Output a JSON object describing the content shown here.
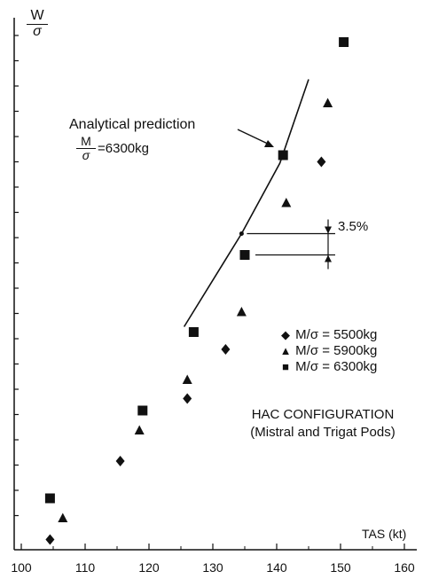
{
  "chart_data": {
    "type": "scatter",
    "title": "",
    "ylabel_numerator": "W",
    "ylabel_denominator": "σ",
    "xlabel": "TAS (kt)",
    "xlim": [
      100,
      160
    ],
    "x_ticks": [
      100,
      110,
      120,
      130,
      140,
      150,
      160
    ],
    "y_tick_labels": "none",
    "grid": false,
    "legend_position": "center-right",
    "series": [
      {
        "name": "M/σ = 5500kg",
        "marker": "diamond",
        "symbol": "◆",
        "points": [
          [
            104.5,
            0.05
          ],
          [
            115.5,
            3.0
          ],
          [
            126,
            5.35
          ],
          [
            132,
            7.2
          ],
          [
            147,
            14.25
          ]
        ]
      },
      {
        "name": "M/σ = 5900kg",
        "marker": "triangle",
        "symbol": "▲",
        "points": [
          [
            106.5,
            0.85
          ],
          [
            118.5,
            4.15
          ],
          [
            126,
            6.05
          ],
          [
            134.5,
            8.6
          ],
          [
            141.5,
            12.7
          ],
          [
            148,
            16.45
          ]
        ]
      },
      {
        "name": "M/σ = 6300kg",
        "marker": "square",
        "symbol": "■",
        "points": [
          [
            104.5,
            1.6
          ],
          [
            119,
            4.9
          ],
          [
            127,
            7.85
          ],
          [
            135,
            10.75
          ],
          [
            141,
            14.5
          ],
          [
            150.5,
            18.75
          ]
        ]
      }
    ],
    "analytical_prediction": {
      "label": "Analytical prediction",
      "m_num": "M",
      "m_den": "σ",
      "value": "=6300kg",
      "line": [
        [
          125.5,
          8.05
        ],
        [
          134.5,
          11.55
        ],
        [
          140.5,
          14.2
        ],
        [
          145,
          17.35
        ]
      ]
    },
    "gap_annotation": {
      "label": "3.5%",
      "from_y": 11.55,
      "to_y": 10.75
    },
    "configuration": {
      "line1": "HAC CONFIGURATION",
      "line2": "(Mistral and Trigat Pods)"
    }
  },
  "colors": {
    "ink": "#111111",
    "background": "#ffffff"
  }
}
